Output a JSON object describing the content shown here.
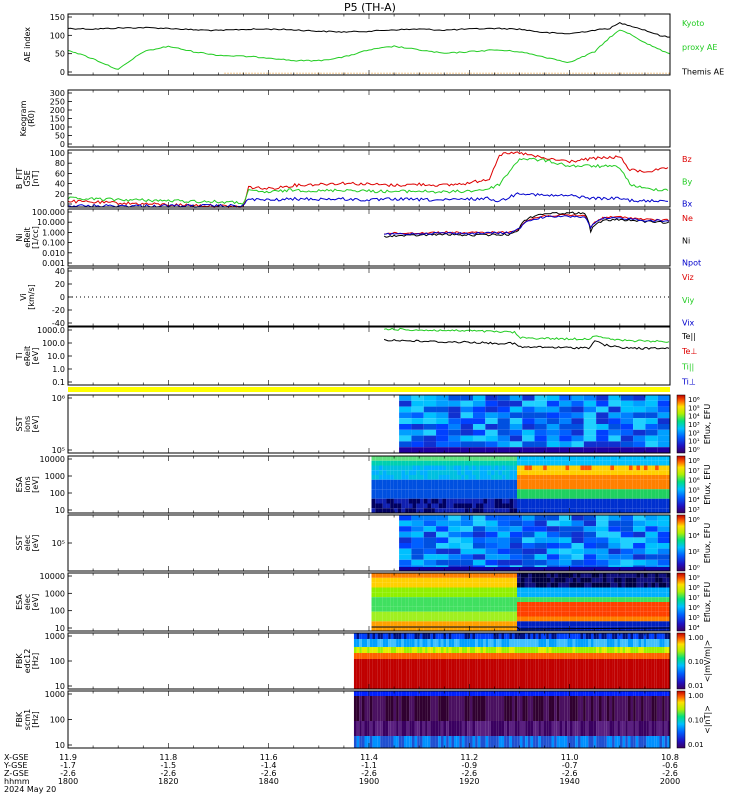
{
  "title": "P5 (TH-A)",
  "colors": {
    "black": "#000000",
    "green": "#22cc22",
    "red": "#dd0000",
    "blue": "#0000cc",
    "orange": "#e08000",
    "yellow": "#ffff00"
  },
  "x_axis": {
    "ticks": [
      {
        "xgse": "11.9",
        "ygse": "-1.7",
        "zgse": "-2.6",
        "time": "1800"
      },
      {
        "xgse": "11.8",
        "ygse": "-1.5",
        "zgse": "-2.6",
        "time": "1820"
      },
      {
        "xgse": "11.6",
        "ygse": "-1.4",
        "zgse": "-2.6",
        "time": "1840"
      },
      {
        "xgse": "11.4",
        "ygse": "-1.1",
        "zgse": "-2.6",
        "time": "1900"
      },
      {
        "xgse": "11.2",
        "ygse": "-0.9",
        "zgse": "-2.6",
        "time": "1920"
      },
      {
        "xgse": "11.0",
        "ygse": "-0.7",
        "zgse": "-2.6",
        "time": "1940"
      },
      {
        "xgse": "10.8",
        "ygse": "-0.6",
        "zgse": "-2.6",
        "time": "2000"
      }
    ],
    "row_labels": [
      "X-GSE",
      "Y-GSE",
      "Z-GSE",
      "hhmm"
    ],
    "date": "2024 May 20"
  },
  "panels": [
    {
      "id": "ae",
      "ylabel": [
        "AE index"
      ],
      "ticks": [
        "150",
        "100",
        "50",
        "0"
      ],
      "legend": [
        {
          "text": "Kyoto",
          "color": "green"
        },
        {
          "text": "proxy AE",
          "color": "green"
        },
        {
          "text": "Themis AE",
          "color": "black"
        }
      ]
    },
    {
      "id": "keogram",
      "ylabel": [
        "Keogram",
        "(R0)"
      ],
      "ticks": [
        "300",
        "250",
        "200",
        "150",
        "100",
        "50",
        "0"
      ],
      "legend": []
    },
    {
      "id": "bfield",
      "ylabel": [
        "B_FIT",
        "GSE",
        "[nT]"
      ],
      "ticks": [
        "100",
        "80",
        "60",
        "40",
        "20",
        "0"
      ],
      "legend": [
        {
          "text": "Bz",
          "color": "red"
        },
        {
          "text": "By",
          "color": "green"
        },
        {
          "text": "Bx",
          "color": "blue"
        }
      ]
    },
    {
      "id": "density",
      "ylabel": [
        "Ni",
        "eReit",
        "[1/cc]"
      ],
      "ticks": [
        "100.000",
        "10.000",
        "1.000",
        "0.100",
        "0.010",
        "0.001"
      ],
      "legend": [
        {
          "text": "Ne",
          "color": "red"
        },
        {
          "text": "Ni",
          "color": "black"
        },
        {
          "text": "Npot",
          "color": "blue"
        }
      ]
    },
    {
      "id": "velocity",
      "ylabel": [
        "Vi",
        "[km/s]"
      ],
      "ticks": [
        "40",
        "20",
        "0",
        "-20",
        "-40"
      ],
      "legend": [
        {
          "text": "Viz",
          "color": "red"
        },
        {
          "text": "Viy",
          "color": "green"
        },
        {
          "text": "Vix",
          "color": "blue"
        }
      ]
    },
    {
      "id": "temp",
      "ylabel": [
        "Ti",
        "eReit",
        "[eV]"
      ],
      "ticks": [
        "1000.0",
        "100.0",
        "10.0",
        "1.0",
        "0.1"
      ],
      "legend": [
        {
          "text": "Te||",
          "color": "black"
        },
        {
          "text": "Te⊥",
          "color": "red"
        },
        {
          "text": "Ti||",
          "color": "green"
        },
        {
          "text": "Ti⊥",
          "color": "blue"
        }
      ]
    },
    {
      "id": "sst_i",
      "ylabel": [
        "SST",
        "ions",
        "[eV]"
      ],
      "ticks": [
        "10⁶",
        "10⁵"
      ],
      "cbar_label": "Eflux, EFU",
      "cbar_ticks": [
        "10⁶",
        "10⁵",
        "10⁴",
        "10³",
        "10²",
        "10¹",
        "10⁰"
      ]
    },
    {
      "id": "esa_i",
      "ylabel": [
        "ESA",
        "ions",
        "[eV]"
      ],
      "ticks": [
        "10000",
        "1000",
        "100",
        "10"
      ],
      "cbar_label": "Eflux, EFU",
      "cbar_ticks": [
        "10⁸",
        "10⁷",
        "10⁶",
        "10⁵",
        "10⁴",
        "10³"
      ]
    },
    {
      "id": "sst_e",
      "ylabel": [
        "SST",
        "elec",
        "[eV]"
      ],
      "ticks": [
        "10⁵"
      ],
      "cbar_label": "Eflux, EFU",
      "cbar_ticks": [
        "10⁶",
        "10⁴",
        "10²",
        "10⁰"
      ]
    },
    {
      "id": "esa_e",
      "ylabel": [
        "ESA",
        "elec",
        "[eV]"
      ],
      "ticks": [
        "10000",
        "1000",
        "100",
        "10"
      ],
      "cbar_label": "Eflux, EFU",
      "cbar_ticks": [
        "10⁹",
        "10⁸",
        "10⁷",
        "10⁶",
        "10⁵",
        "10⁴"
      ]
    },
    {
      "id": "fbk_e",
      "ylabel": [
        "FBK",
        "edc12",
        "[Hz]"
      ],
      "ticks": [
        "1000",
        "100",
        "10"
      ],
      "cbar_label": "<|mV/m|>",
      "cbar_ticks": [
        "1.00",
        "0.10",
        "0.01"
      ]
    },
    {
      "id": "fbk_b",
      "ylabel": [
        "FBK",
        "scm1",
        "[Hz]"
      ],
      "ticks": [
        "1000",
        "100",
        "10"
      ],
      "cbar_label": "<|nT|>",
      "cbar_ticks": [
        "1.00",
        "0.10",
        "0.01"
      ]
    }
  ],
  "chart_data": {
    "type": "line",
    "title": "P5 (TH-A)",
    "x_axis": {
      "label": "hhmm",
      "range": [
        "1800",
        "2000"
      ],
      "date": "2024 May 20"
    },
    "ae": {
      "ylim": [
        -10,
        160
      ],
      "t": [
        0,
        5,
        10,
        15,
        20,
        25,
        30,
        35,
        40,
        45,
        50,
        55,
        60,
        65,
        70,
        75,
        80,
        85,
        90,
        95,
        100,
        105,
        108,
        110,
        112,
        115,
        118,
        120
      ],
      "series": [
        {
          "name": "Themis AE",
          "color": "black",
          "values": [
            120,
            118,
            121,
            122,
            120,
            116,
            114,
            117,
            118,
            116,
            112,
            110,
            112,
            116,
            118,
            115,
            118,
            120,
            118,
            108,
            105,
            115,
            120,
            135,
            128,
            115,
            100,
            95
          ]
        },
        {
          "name": "Kyoto proxy AE",
          "color": "green",
          "values": [
            60,
            35,
            5,
            55,
            70,
            55,
            45,
            42,
            38,
            30,
            30,
            40,
            60,
            70,
            60,
            50,
            55,
            60,
            55,
            40,
            25,
            55,
            95,
            115,
            105,
            80,
            60,
            50
          ]
        }
      ]
    },
    "bfield": {
      "ylim": [
        0,
        100
      ],
      "t": [
        0,
        10,
        20,
        30,
        35,
        36,
        40,
        45,
        50,
        55,
        60,
        65,
        70,
        75,
        80,
        84,
        86,
        90,
        95,
        100,
        105,
        110,
        112,
        115,
        120
      ],
      "series": [
        {
          "name": "Bz",
          "color": "red",
          "values": [
            10,
            7,
            4,
            2,
            0,
            35,
            32,
            38,
            40,
            42,
            40,
            38,
            40,
            38,
            42,
            50,
            92,
            95,
            85,
            80,
            85,
            88,
            65,
            62,
            68
          ]
        },
        {
          "name": "By",
          "color": "green",
          "values": [
            15,
            13,
            11,
            9,
            7,
            28,
            26,
            30,
            28,
            30,
            28,
            27,
            28,
            26,
            28,
            32,
            40,
            85,
            82,
            72,
            72,
            70,
            40,
            32,
            30
          ]
        },
        {
          "name": "Bx",
          "color": "blue",
          "values": [
            2,
            2,
            2,
            2,
            2,
            14,
            12,
            14,
            14,
            14,
            12,
            14,
            13,
            12,
            14,
            15,
            10,
            25,
            20,
            20,
            15,
            15,
            12,
            10,
            12
          ]
        }
      ]
    },
    "density": {
      "ylim_log": [
        0.001,
        100
      ],
      "t": [
        63,
        70,
        75,
        80,
        85,
        88,
        90,
        95,
        100,
        103,
        104,
        107,
        110,
        115,
        120
      ],
      "series": [
        {
          "name": "Ne",
          "color": "red",
          "values": [
            0.7,
            0.8,
            0.9,
            0.8,
            0.9,
            0.9,
            2.0,
            25,
            28,
            25,
            1.2,
            18,
            20,
            12,
            10
          ]
        },
        {
          "name": "Ni",
          "color": "black",
          "values": [
            0.4,
            0.5,
            0.6,
            0.5,
            0.55,
            0.6,
            1.5,
            40,
            45,
            40,
            0.3,
            10,
            12,
            8,
            6
          ]
        },
        {
          "name": "Npot",
          "color": "blue",
          "values": [
            0.6,
            0.7,
            0.8,
            0.7,
            0.8,
            0.8,
            1.8,
            20,
            22,
            20,
            1.0,
            15,
            16,
            10,
            9
          ]
        }
      ]
    },
    "temp": {
      "ylim_log": [
        0.1,
        4000
      ],
      "t": [
        63,
        70,
        75,
        80,
        85,
        89,
        90,
        95,
        100,
        104,
        105,
        107,
        110,
        115,
        120
      ],
      "series": [
        {
          "name": "Te||",
          "color": "black",
          "values": [
            380,
            300,
            260,
            250,
            200,
            200,
            100,
            100,
            90,
            90,
            300,
            150,
            90,
            80,
            80
          ]
        },
        {
          "name": "Ti||",
          "color": "green",
          "values": [
            2800,
            2300,
            2100,
            2000,
            1700,
            1500,
            550,
            500,
            450,
            450,
            900,
            500,
            350,
            300,
            280
          ]
        }
      ]
    }
  }
}
